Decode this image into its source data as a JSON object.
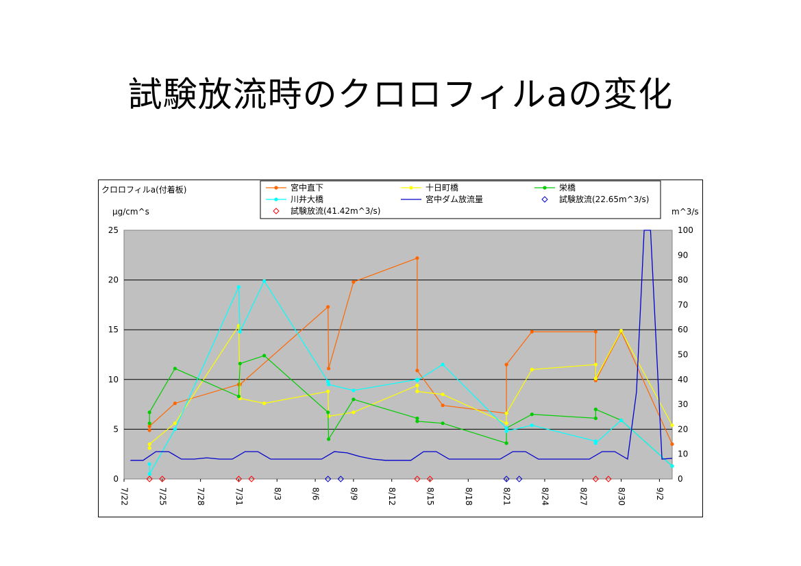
{
  "slide": {
    "title": "試験放流時のクロロフィルaの変化"
  },
  "chart_data": {
    "type": "line",
    "title": "クロロフィルa(付着板)",
    "ylabel_left": "μg/cm^s",
    "ylabel_right": "m^3/s",
    "ylim_left": [
      0,
      25
    ],
    "ylim_right": [
      0,
      100
    ],
    "xlim": [
      0,
      43
    ],
    "x_ticks": [
      {
        "x": 0,
        "label": "7/22"
      },
      {
        "x": 3,
        "label": "7/25"
      },
      {
        "x": 6,
        "label": "7/28"
      },
      {
        "x": 9,
        "label": "7/31"
      },
      {
        "x": 12,
        "label": "8/3"
      },
      {
        "x": 15,
        "label": "8/6"
      },
      {
        "x": 18,
        "label": "8/9"
      },
      {
        "x": 21,
        "label": "8/12"
      },
      {
        "x": 24,
        "label": "8/15"
      },
      {
        "x": 27,
        "label": "8/18"
      },
      {
        "x": 30,
        "label": "8/21"
      },
      {
        "x": 33,
        "label": "8/24"
      },
      {
        "x": 36,
        "label": "8/27"
      },
      {
        "x": 39,
        "label": "8/30"
      },
      {
        "x": 42,
        "label": "9/2"
      }
    ],
    "y_ticks_left": [
      0,
      5,
      10,
      15,
      20,
      25
    ],
    "y_ticks_right": [
      0,
      10,
      20,
      30,
      40,
      50,
      60,
      70,
      80,
      90,
      100
    ],
    "grid": "horizontal",
    "legend_position": "top",
    "series": [
      {
        "name": "宮中直下",
        "axis": "left",
        "color": "#ff6600",
        "marker": "dot",
        "points": [
          [
            2,
            4.9
          ],
          [
            2,
            5.3
          ],
          [
            4,
            7.6
          ],
          [
            9,
            9.5
          ],
          [
            9.1,
            9.5
          ],
          [
            16,
            17.3
          ],
          [
            16.05,
            11.1
          ],
          [
            18,
            19.8
          ],
          [
            23,
            22.2
          ],
          [
            23,
            10.9
          ],
          [
            25,
            7.4
          ],
          [
            30,
            6.6
          ],
          [
            30,
            11.5
          ],
          [
            32,
            14.8
          ],
          [
            37,
            14.8
          ],
          [
            37,
            9.9
          ],
          [
            39,
            14.8
          ],
          [
            43,
            3.5
          ]
        ]
      },
      {
        "name": "十日町橋",
        "axis": "left",
        "color": "#ffff00",
        "marker": "dot",
        "points": [
          [
            2,
            3.1
          ],
          [
            2,
            3.5
          ],
          [
            4,
            5.6
          ],
          [
            9,
            15.4
          ],
          [
            9.1,
            8.1
          ],
          [
            11,
            7.6
          ],
          [
            16,
            8.8
          ],
          [
            16.05,
            6.3
          ],
          [
            18,
            6.7
          ],
          [
            23,
            9.4
          ],
          [
            23,
            8.8
          ],
          [
            25,
            8.5
          ],
          [
            30,
            5.6
          ],
          [
            30,
            6.6
          ],
          [
            32,
            11.0
          ],
          [
            37,
            11.5
          ],
          [
            37,
            10.1
          ],
          [
            39,
            14.9
          ],
          [
            43,
            5.4
          ]
        ]
      },
      {
        "name": "栄橋",
        "axis": "left",
        "color": "#00cc00",
        "marker": "dot",
        "points": [
          [
            2,
            5.6
          ],
          [
            2,
            6.7
          ],
          [
            4,
            11.1
          ],
          [
            9,
            8.3
          ],
          [
            9.1,
            11.6
          ],
          [
            11,
            12.4
          ],
          [
            16,
            6.7
          ],
          [
            16.05,
            4.0
          ],
          [
            18,
            8.0
          ],
          [
            23,
            6.1
          ],
          [
            23,
            5.8
          ],
          [
            25,
            5.6
          ],
          [
            30,
            3.6
          ],
          [
            30,
            5.1
          ],
          [
            32,
            6.5
          ],
          [
            37,
            6.1
          ],
          [
            37,
            7.0
          ],
          [
            39,
            5.9
          ],
          [
            43,
            1.3
          ]
        ]
      },
      {
        "name": "川井大橋",
        "axis": "left",
        "color": "#00ffff",
        "marker": "dot",
        "points": [
          [
            2,
            1.5
          ],
          [
            2,
            0.5
          ],
          [
            4,
            5.0
          ],
          [
            9,
            19.3
          ],
          [
            9.1,
            14.8
          ],
          [
            11,
            19.9
          ],
          [
            16,
            9.8
          ],
          [
            16.05,
            9.5
          ],
          [
            18,
            8.9
          ],
          [
            23,
            10.0
          ],
          [
            23,
            9.9
          ],
          [
            25,
            11.5
          ],
          [
            30,
            5.1
          ],
          [
            30,
            4.8
          ],
          [
            32,
            5.4
          ],
          [
            37,
            3.8
          ],
          [
            37,
            3.6
          ],
          [
            39,
            5.9
          ],
          [
            43,
            1.3
          ]
        ]
      },
      {
        "name": "宮中ダム放流量",
        "axis": "right",
        "color": "#0000cc",
        "marker": "none",
        "points": [
          [
            0.5,
            7.5
          ],
          [
            1.5,
            7.5
          ],
          [
            2.5,
            11
          ],
          [
            3.5,
            11
          ],
          [
            4.5,
            8
          ],
          [
            5.5,
            8
          ],
          [
            6.5,
            8.5
          ],
          [
            7.5,
            8
          ],
          [
            8.5,
            8
          ],
          [
            9.5,
            11
          ],
          [
            10.5,
            11
          ],
          [
            11.5,
            8
          ],
          [
            12.5,
            8
          ],
          [
            13.5,
            8
          ],
          [
            14.5,
            8
          ],
          [
            15.5,
            8
          ],
          [
            16.5,
            11
          ],
          [
            17.5,
            10.5
          ],
          [
            18.5,
            9
          ],
          [
            19.5,
            8
          ],
          [
            20.5,
            7.5
          ],
          [
            21.5,
            7.5
          ],
          [
            22.5,
            7.5
          ],
          [
            23.5,
            11
          ],
          [
            24.5,
            11
          ],
          [
            25.5,
            8
          ],
          [
            26.5,
            8
          ],
          [
            27.5,
            8
          ],
          [
            28.5,
            8
          ],
          [
            29.5,
            8
          ],
          [
            30.5,
            11
          ],
          [
            31.5,
            11
          ],
          [
            32.5,
            8
          ],
          [
            33.5,
            8
          ],
          [
            34.5,
            8
          ],
          [
            35.5,
            8
          ],
          [
            36.5,
            8
          ],
          [
            37.5,
            11
          ],
          [
            38.5,
            11
          ],
          [
            39.5,
            8
          ],
          [
            40.2,
            35
          ],
          [
            40.8,
            100
          ],
          [
            41.3,
            100
          ],
          [
            42.2,
            8
          ],
          [
            43.5,
            8.5
          ],
          [
            44,
            8.5
          ]
        ]
      }
    ],
    "markers_series": [
      {
        "name": "試験放流(22.65m^3/s)",
        "color": "#0000cc",
        "marker": "diamond",
        "x": [
          16,
          17,
          30,
          31
        ]
      },
      {
        "name": "試験放流(41.42m^3/s)",
        "color": "#ff0000",
        "marker": "diamond",
        "x": [
          2,
          3,
          9,
          10,
          23,
          24,
          37,
          38
        ]
      }
    ]
  }
}
